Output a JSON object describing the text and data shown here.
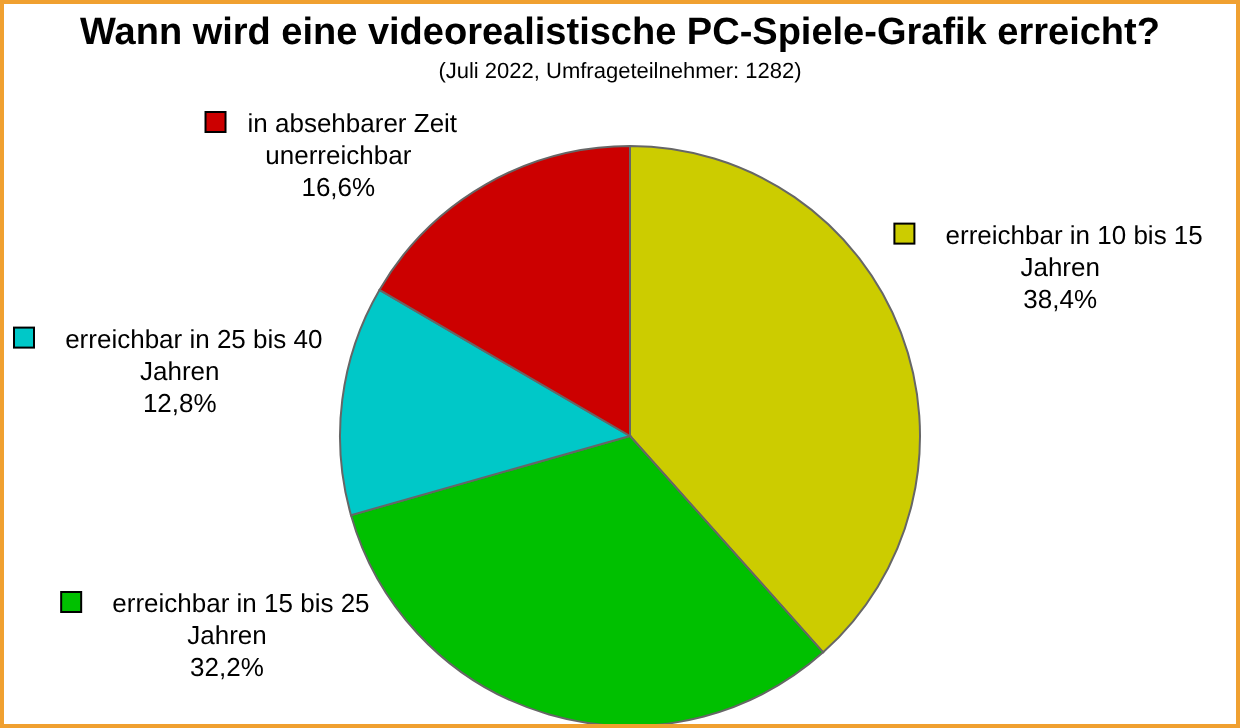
{
  "chart_data": {
    "type": "pie",
    "title": "Wann wird eine videorealistische PC-Spiele-Grafik erreicht?",
    "subtitle": "(Juli 2022, Umfrageteilnehmer: 1282)",
    "categories": [
      "erreichbar in 10 bis 15 Jahren",
      "erreichbar in 15 bis 25 Jahren",
      "erreichbar in 25 bis 40 Jahren",
      "in absehbarer Zeit unerreichbar"
    ],
    "values": [
      38.4,
      32.2,
      12.8,
      16.6
    ],
    "value_labels": [
      "38,4%",
      "32,2%",
      "12,8%",
      "16,6%"
    ],
    "colors": [
      "#cccc00",
      "#00c000",
      "#00c8c8",
      "#cc0000"
    ],
    "legend": "left"
  }
}
